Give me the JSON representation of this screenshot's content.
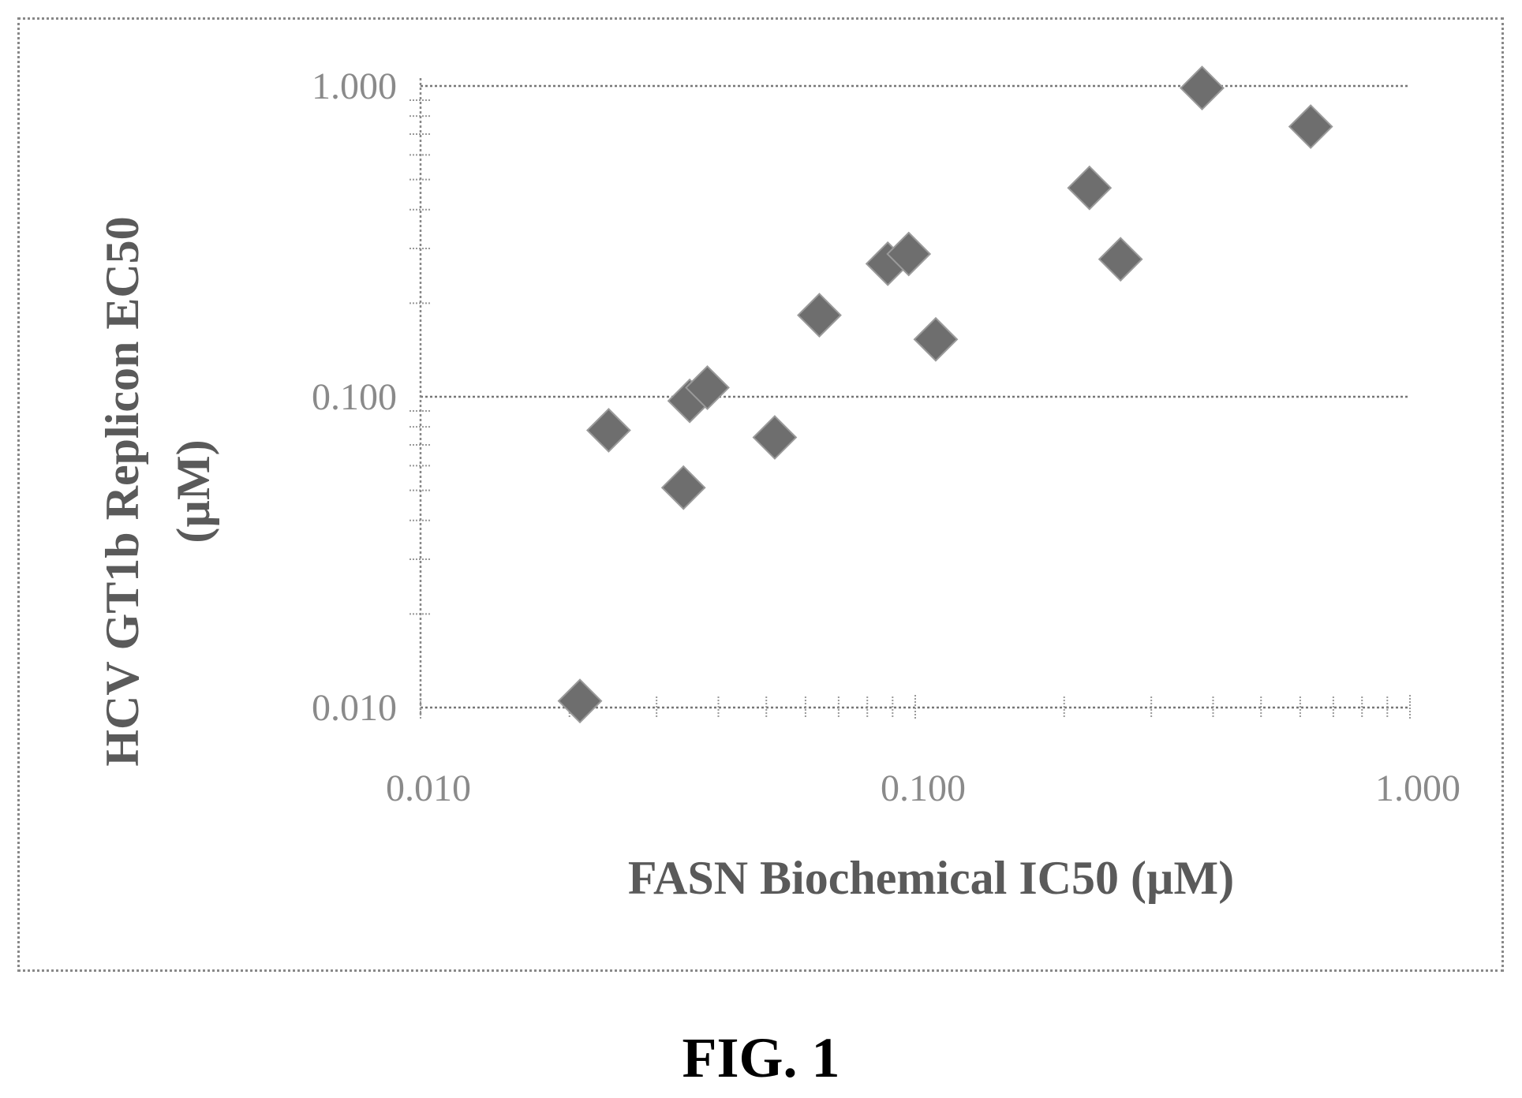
{
  "chart_data": {
    "type": "scatter",
    "xlabel": "FASN Biochemical IC50 (µM)",
    "ylabel_lines": [
      "HCV GT1b Replicon EC50",
      "(µM)"
    ],
    "x_scale": "log",
    "y_scale": "log",
    "xlim": [
      0.01,
      1.0
    ],
    "ylim": [
      0.01,
      1.0
    ],
    "x_ticks": [
      {
        "value": 0.01,
        "label": "0.010"
      },
      {
        "value": 0.1,
        "label": "0.100"
      },
      {
        "value": 1.0,
        "label": "1.000"
      }
    ],
    "y_ticks": [
      {
        "value": 0.01,
        "label": "0.010"
      },
      {
        "value": 0.1,
        "label": "0.100"
      },
      {
        "value": 1.0,
        "label": "1.000"
      }
    ],
    "grid": "horizontal major gridlines",
    "marker": "diamond",
    "marker_color": "#6e6e6e",
    "points": [
      {
        "x": 0.021,
        "y": 0.0105
      },
      {
        "x": 0.024,
        "y": 0.078
      },
      {
        "x": 0.034,
        "y": 0.051
      },
      {
        "x": 0.035,
        "y": 0.097
      },
      {
        "x": 0.038,
        "y": 0.107
      },
      {
        "x": 0.052,
        "y": 0.074
      },
      {
        "x": 0.064,
        "y": 0.183
      },
      {
        "x": 0.088,
        "y": 0.268
      },
      {
        "x": 0.097,
        "y": 0.288
      },
      {
        "x": 0.11,
        "y": 0.153
      },
      {
        "x": 0.225,
        "y": 0.47
      },
      {
        "x": 0.26,
        "y": 0.277
      },
      {
        "x": 0.38,
        "y": 0.985
      },
      {
        "x": 0.63,
        "y": 0.74
      }
    ]
  },
  "caption": "FIG. 1"
}
